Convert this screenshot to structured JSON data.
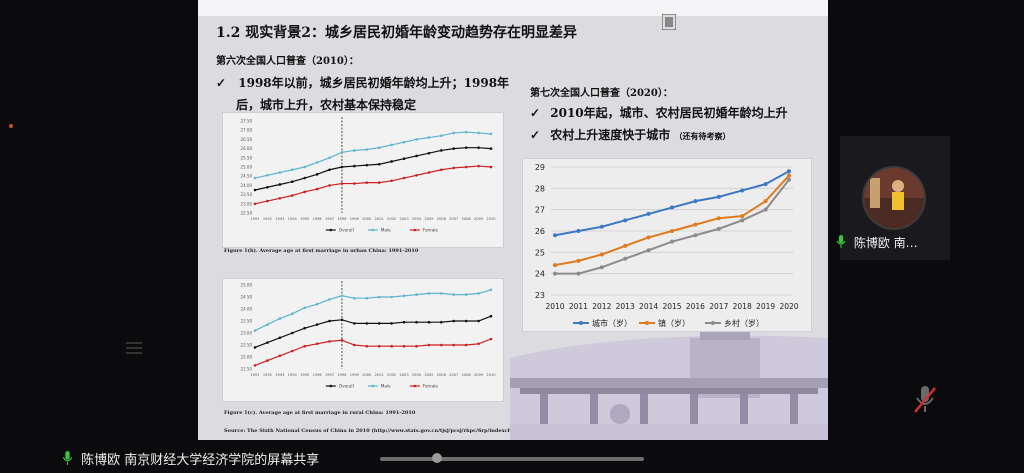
{
  "slide": {
    "title": "1.2 现实背景2：城乡居民初婚年龄变动趋势存在明显差异",
    "left": {
      "census": "第六次全国人口普查（2010）：",
      "bullet1_line1": "1998年以前，城乡居民初婚年龄均上升；1998年",
      "bullet1_line2": "后，城市上升，农村基本保持稳定",
      "check": "✓"
    },
    "right": {
      "census": "第七次全国人口普查（2020）：",
      "bullet1": "2010年起，城市、农村居民初婚年龄均上升",
      "bullet2": "农村上升速度快于城市",
      "bullet2_note": "（还有待考察）"
    },
    "small_chart_urban": {
      "caption": "Figure 1(b). Average age at first marriage in urban China: 1991-2010",
      "years": [
        "1991",
        "1992",
        "1993",
        "1994",
        "1995",
        "1996",
        "1997",
        "1998",
        "1999",
        "2000",
        "2001",
        "2002",
        "2003",
        "2004",
        "2005",
        "2006",
        "2007",
        "2008",
        "2009",
        "2010"
      ],
      "yticks": [
        "22.50",
        "23.00",
        "23.50",
        "24.00",
        "24.50",
        "25.00",
        "25.50",
        "26.00",
        "26.50",
        "27.00",
        "27.50"
      ],
      "legend": [
        "Overall",
        "Male",
        "Female"
      ]
    },
    "small_chart_rural": {
      "caption": "Figure 1(c). Average age at first marriage in rural China: 1991-2010",
      "years": [
        "1991",
        "1992",
        "1993",
        "1994",
        "1995",
        "1996",
        "1997",
        "1998",
        "1999",
        "2000",
        "2001",
        "2002",
        "2003",
        "2004",
        "2005",
        "2006",
        "2007",
        "2008",
        "2009",
        "2010"
      ],
      "yticks": [
        "21.50",
        "22.00",
        "22.50",
        "23.00",
        "23.50",
        "24.00",
        "24.50",
        "25.00"
      ],
      "legend": [
        "Overall",
        "Male",
        "Female"
      ],
      "source": "Source: The Sixth National Census of China in 2010 (http://www.stats.gov.cn/tjsj/pcsj/rkpc/6rp/indexch.htm)"
    }
  },
  "chart_data": [
    {
      "type": "line",
      "title": "",
      "xlabel": "",
      "ylabel": "",
      "ylim": [
        22.5,
        27.5
      ],
      "x": [
        1991,
        1992,
        1993,
        1994,
        1995,
        1996,
        1997,
        1998,
        1999,
        2000,
        2001,
        2002,
        2003,
        2004,
        2005,
        2006,
        2007,
        2008,
        2009,
        2010
      ],
      "series": [
        {
          "name": "Male",
          "color": "#5fb4d0",
          "values": [
            24.4,
            24.55,
            24.7,
            24.85,
            25.0,
            25.25,
            25.5,
            25.8,
            25.9,
            25.95,
            26.05,
            26.2,
            26.35,
            26.5,
            26.6,
            26.7,
            26.85,
            26.9,
            26.85,
            26.8
          ]
        },
        {
          "name": "Overall",
          "color": "#111111",
          "values": [
            23.75,
            23.9,
            24.05,
            24.2,
            24.4,
            24.6,
            24.85,
            25.0,
            25.05,
            25.1,
            25.15,
            25.3,
            25.45,
            25.6,
            25.75,
            25.9,
            26.0,
            26.05,
            26.05,
            26.0
          ]
        },
        {
          "name": "Female",
          "color": "#cc1f1f",
          "values": [
            23.0,
            23.15,
            23.3,
            23.45,
            23.65,
            23.8,
            24.0,
            24.1,
            24.1,
            24.15,
            24.15,
            24.25,
            24.4,
            24.55,
            24.7,
            24.85,
            24.95,
            25.0,
            25.05,
            25.0
          ]
        }
      ]
    },
    {
      "type": "line",
      "title": "",
      "xlabel": "",
      "ylabel": "",
      "ylim": [
        21.5,
        25.0
      ],
      "x": [
        1991,
        1992,
        1993,
        1994,
        1995,
        1996,
        1997,
        1998,
        1999,
        2000,
        2001,
        2002,
        2003,
        2004,
        2005,
        2006,
        2007,
        2008,
        2009,
        2010
      ],
      "series": [
        {
          "name": "Male",
          "color": "#5fb4d0",
          "values": [
            23.1,
            23.35,
            23.6,
            23.8,
            24.05,
            24.2,
            24.4,
            24.55,
            24.45,
            24.45,
            24.5,
            24.5,
            24.55,
            24.6,
            24.65,
            24.65,
            24.6,
            24.6,
            24.65,
            24.8
          ]
        },
        {
          "name": "Overall",
          "color": "#111111",
          "values": [
            22.4,
            22.6,
            22.8,
            23.0,
            23.2,
            23.35,
            23.5,
            23.55,
            23.4,
            23.4,
            23.4,
            23.4,
            23.45,
            23.45,
            23.45,
            23.45,
            23.5,
            23.5,
            23.5,
            23.7
          ]
        },
        {
          "name": "Female",
          "color": "#cc1f1f",
          "values": [
            21.65,
            21.85,
            22.05,
            22.25,
            22.45,
            22.55,
            22.65,
            22.7,
            22.5,
            22.45,
            22.45,
            22.45,
            22.45,
            22.45,
            22.5,
            22.5,
            22.5,
            22.5,
            22.55,
            22.75
          ]
        }
      ]
    },
    {
      "type": "line",
      "title": "",
      "xlabel": "",
      "ylabel": "",
      "ylim": [
        23,
        29
      ],
      "x": [
        2010,
        2011,
        2012,
        2013,
        2014,
        2015,
        2016,
        2017,
        2018,
        2019,
        2020
      ],
      "categories": [
        "2010",
        "2011",
        "2012",
        "2013",
        "2014",
        "2015",
        "2016",
        "2017",
        "2018",
        "2019",
        "2020"
      ],
      "yticks": [
        "23",
        "24",
        "25",
        "26",
        "27",
        "28",
        "29"
      ],
      "legend_position": "bottom",
      "grid": true,
      "series": [
        {
          "name": "城市（岁）",
          "color": "#3c78c4",
          "values": [
            25.8,
            26.0,
            26.2,
            26.5,
            26.8,
            27.1,
            27.4,
            27.6,
            27.9,
            28.2,
            28.8
          ]
        },
        {
          "name": "镇（岁）",
          "color": "#e07a1e",
          "values": [
            24.4,
            24.6,
            24.9,
            25.3,
            25.7,
            26.0,
            26.3,
            26.6,
            26.7,
            27.4,
            28.6
          ]
        },
        {
          "name": "乡村（岁）",
          "color": "#8c8c8c",
          "values": [
            24.0,
            24.0,
            24.3,
            24.7,
            25.1,
            25.5,
            25.8,
            26.1,
            26.5,
            27.0,
            28.4
          ]
        }
      ]
    }
  ],
  "participant": {
    "cam_name": "陈博欧 南…",
    "share_label": "陈博欧 南京财经大学经济学院的屏幕共享"
  }
}
